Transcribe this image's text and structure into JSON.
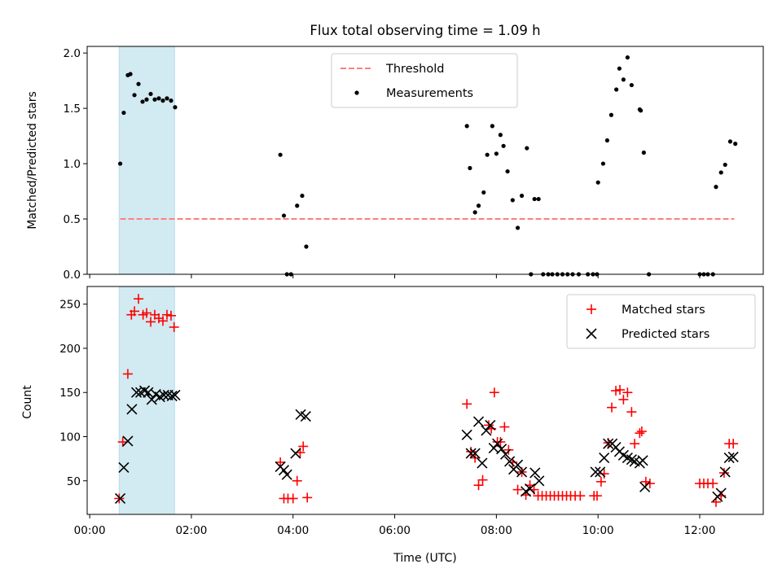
{
  "chart_data": {
    "title": "Flux total observing time = 1.09 h",
    "xlabel": "Time (UTC)",
    "xlim": [
      -0.05,
      13.25
    ],
    "xticks": [
      0,
      2,
      4,
      6,
      8,
      10,
      12
    ],
    "xtick_labels": [
      "00:00",
      "02:00",
      "04:00",
      "06:00",
      "08:00",
      "10:00",
      "12:00"
    ],
    "highlight_span": {
      "x0": 0.58,
      "x1": 1.67,
      "color": "#add8e6"
    },
    "panels": [
      {
        "type": "scatter",
        "ylabel": "Matched/Predicted stars",
        "ylim": [
          0,
          2.06
        ],
        "yticks": [
          0.0,
          0.5,
          1.0,
          1.5,
          2.0
        ],
        "ytick_labels": [
          "0.0",
          "0.5",
          "1.0",
          "1.5",
          "2.0"
        ],
        "legend_position": "top-center",
        "threshold": {
          "name": "Threshold",
          "y": 0.5,
          "x0": 0.6,
          "x1": 12.68,
          "color": "#ff7f7f"
        },
        "series": [
          {
            "name": "Measurements",
            "marker": "dot",
            "color": "#000000",
            "x": [
              0.6,
              0.67,
              0.75,
              0.8,
              0.88,
              0.96,
              1.04,
              1.12,
              1.2,
              1.28,
              1.36,
              1.44,
              1.52,
              1.6,
              1.68,
              3.75,
              3.82,
              3.88,
              3.96,
              4.08,
              4.18,
              4.26,
              7.42,
              7.48,
              7.58,
              7.65,
              7.75,
              7.82,
              7.92,
              8.0,
              8.08,
              8.14,
              8.22,
              8.32,
              8.42,
              8.5,
              8.6,
              8.68,
              8.75,
              8.83,
              8.92,
              9.02,
              9.1,
              9.2,
              9.3,
              9.4,
              9.5,
              9.62,
              9.8,
              9.9,
              9.98,
              10.0,
              10.1,
              10.18,
              10.26,
              10.36,
              10.42,
              10.5,
              10.58,
              10.66,
              10.82,
              10.84,
              10.9,
              11.0,
              12.0,
              12.08,
              12.16,
              12.26,
              12.32,
              12.42,
              12.5,
              12.6,
              12.7
            ],
            "y": [
              1.0,
              1.46,
              1.8,
              1.81,
              1.62,
              1.72,
              1.56,
              1.58,
              1.63,
              1.58,
              1.59,
              1.57,
              1.59,
              1.57,
              1.51,
              1.08,
              0.53,
              0.0,
              0.0,
              0.62,
              0.71,
              0.25,
              1.34,
              0.96,
              0.56,
              0.62,
              0.74,
              1.08,
              1.34,
              1.09,
              1.26,
              1.16,
              0.93,
              0.67,
              0.42,
              0.71,
              1.14,
              0.0,
              0.68,
              0.68,
              0.0,
              0.0,
              0.0,
              0.0,
              0.0,
              0.0,
              0.0,
              0.0,
              0.0,
              0.0,
              0.0,
              0.83,
              1.0,
              1.21,
              1.44,
              1.67,
              1.86,
              1.76,
              1.96,
              1.71,
              1.49,
              1.48,
              1.1,
              0.0,
              0.0,
              0.0,
              0.0,
              0.0,
              0.79,
              0.92,
              0.99,
              1.2,
              1.18
            ]
          }
        ]
      },
      {
        "type": "scatter",
        "ylabel": "Count",
        "ylim": [
          12,
          270
        ],
        "yticks": [
          50,
          100,
          150,
          200,
          250
        ],
        "ytick_labels": [
          "50",
          "100",
          "150",
          "200",
          "250"
        ],
        "legend_position": "top-right",
        "series": [
          {
            "name": "Matched stars",
            "marker": "plus",
            "color": "#ff0000",
            "x": [
              0.58,
              0.65,
              0.75,
              0.82,
              0.88,
              0.96,
              1.05,
              1.12,
              1.2,
              1.28,
              1.36,
              1.44,
              1.52,
              1.6,
              1.66,
              3.75,
              3.82,
              3.9,
              4.0,
              4.08,
              4.14,
              4.2,
              4.28,
              7.42,
              7.5,
              7.58,
              7.65,
              7.73,
              7.85,
              7.9,
              7.96,
              8.02,
              8.08,
              8.16,
              8.24,
              8.32,
              8.42,
              8.5,
              8.58,
              8.66,
              8.74,
              8.82,
              8.9,
              8.98,
              9.06,
              9.14,
              9.22,
              9.3,
              9.38,
              9.46,
              9.55,
              9.65,
              9.92,
              9.98,
              10.06,
              10.12,
              10.2,
              10.27,
              10.35,
              10.43,
              10.5,
              10.58,
              10.66,
              10.72,
              10.82,
              10.86,
              10.94,
              11.02,
              12.0,
              12.08,
              12.16,
              12.26,
              12.32,
              12.42,
              12.48,
              12.58,
              12.66
            ],
            "y": [
              30,
              94,
              171,
              238,
              242,
              256,
              238,
              240,
              230,
              238,
              234,
              231,
              238,
              237,
              224,
              71,
              30,
              30,
              30,
              50,
              82,
              89,
              31,
              137,
              83,
              76,
              45,
              51,
              113,
              109,
              150,
              94,
              94,
              111,
              85,
              71,
              40,
              60,
              34,
              45,
              40,
              33,
              33,
              33,
              33,
              33,
              33,
              33,
              33,
              33,
              33,
              33,
              33,
              33,
              49,
              58,
              93,
              133,
              152,
              153,
              142,
              150,
              128,
              92,
              104,
              106,
              49,
              47,
              47,
              47,
              47,
              47,
              26,
              33,
              59,
              92,
              92
            ]
          },
          {
            "name": "Predicted stars",
            "marker": "x",
            "color": "#000000",
            "x": [
              0.6,
              0.67,
              0.75,
              0.83,
              0.92,
              1.0,
              1.08,
              1.15,
              1.22,
              1.3,
              1.38,
              1.46,
              1.54,
              1.62,
              1.68,
              3.75,
              3.82,
              3.88,
              4.05,
              4.15,
              4.25,
              7.42,
              7.5,
              7.58,
              7.65,
              7.72,
              7.8,
              7.88,
              7.95,
              8.02,
              8.1,
              8.18,
              8.26,
              8.34,
              8.42,
              8.5,
              8.58,
              8.66,
              8.76,
              8.84,
              9.95,
              10.04,
              10.12,
              10.2,
              10.28,
              10.35,
              10.42,
              10.5,
              10.58,
              10.66,
              10.72,
              10.82,
              10.88,
              10.92,
              12.35,
              12.42,
              12.5,
              12.58,
              12.66
            ],
            "y": [
              30,
              65,
              95,
              131,
              150,
              150,
              152,
              150,
              142,
              148,
              145,
              147,
              147,
              146,
              147,
              66,
              62,
              57,
              81,
              125,
              123,
              102,
              81,
              81,
              117,
              70,
              107,
              113,
              87,
              92,
              86,
              80,
              72,
              63,
              68,
              60,
              38,
              41,
              59,
              50,
              60,
              60,
              76,
              92,
              92,
              88,
              83,
              79,
              76,
              74,
              72,
              70,
              73,
              43,
              32,
              36,
              60,
              76,
              77
            ]
          }
        ]
      }
    ]
  }
}
